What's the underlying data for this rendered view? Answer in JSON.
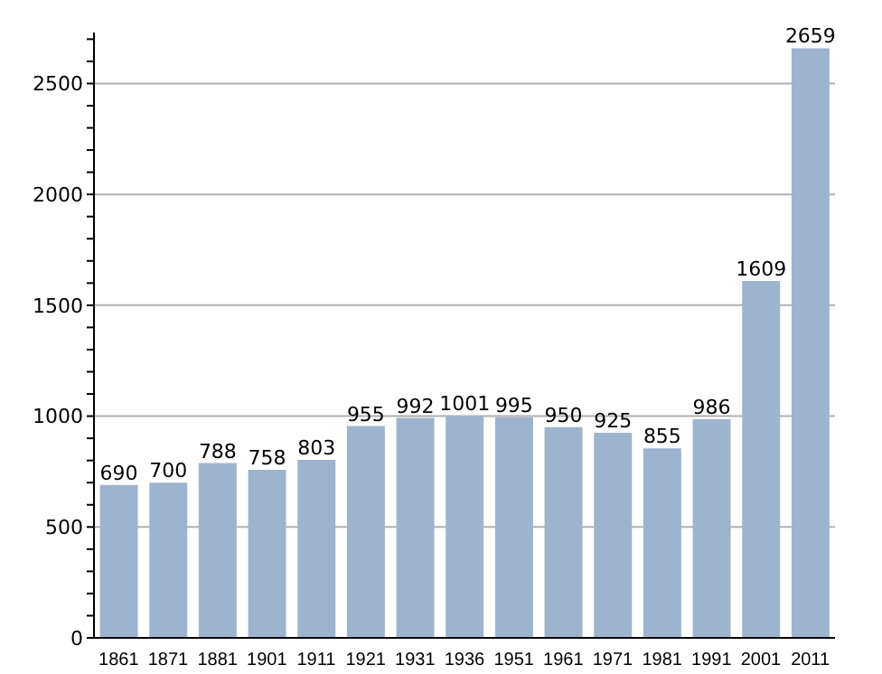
{
  "chart_data": {
    "type": "bar",
    "categories": [
      "1861",
      "1871",
      "1881",
      "1901",
      "1911",
      "1921",
      "1931",
      "1936",
      "1951",
      "1961",
      "1971",
      "1981",
      "1991",
      "2001",
      "2011"
    ],
    "values": [
      690,
      700,
      788,
      758,
      803,
      955,
      992,
      1001,
      995,
      950,
      925,
      855,
      986,
      1609,
      2659
    ],
    "color": "#9db4cf",
    "data_labels": true,
    "grid": "y",
    "ylim": [
      0,
      2730
    ],
    "yticks": [
      0,
      {
        "value": 100,
        "label": null
      },
      {
        "value": 200,
        "label": null
      },
      {
        "value": 300,
        "label": null
      },
      {
        "value": 400,
        "label": null
      },
      500,
      {
        "value": 600,
        "label": null
      },
      {
        "value": 700,
        "label": null
      },
      {
        "value": 800,
        "label": null
      },
      {
        "value": 900,
        "label": null
      },
      1000,
      {
        "value": 1100,
        "label": null
      },
      {
        "value": 1200,
        "label": null
      },
      {
        "value": 1300,
        "label": null
      },
      {
        "value": 1400,
        "label": null
      },
      1500,
      {
        "value": 1600,
        "label": null
      },
      {
        "value": 1700,
        "label": null
      },
      {
        "value": 1800,
        "label": null
      },
      {
        "value": 1900,
        "label": null
      },
      2000,
      {
        "value": 2100,
        "label": null
      },
      {
        "value": 2200,
        "label": null
      },
      {
        "value": 2300,
        "label": null
      },
      {
        "value": 2400,
        "label": null
      },
      2500,
      {
        "value": 2600,
        "label": null
      },
      {
        "value": 2700,
        "label": null
      }
    ]
  }
}
